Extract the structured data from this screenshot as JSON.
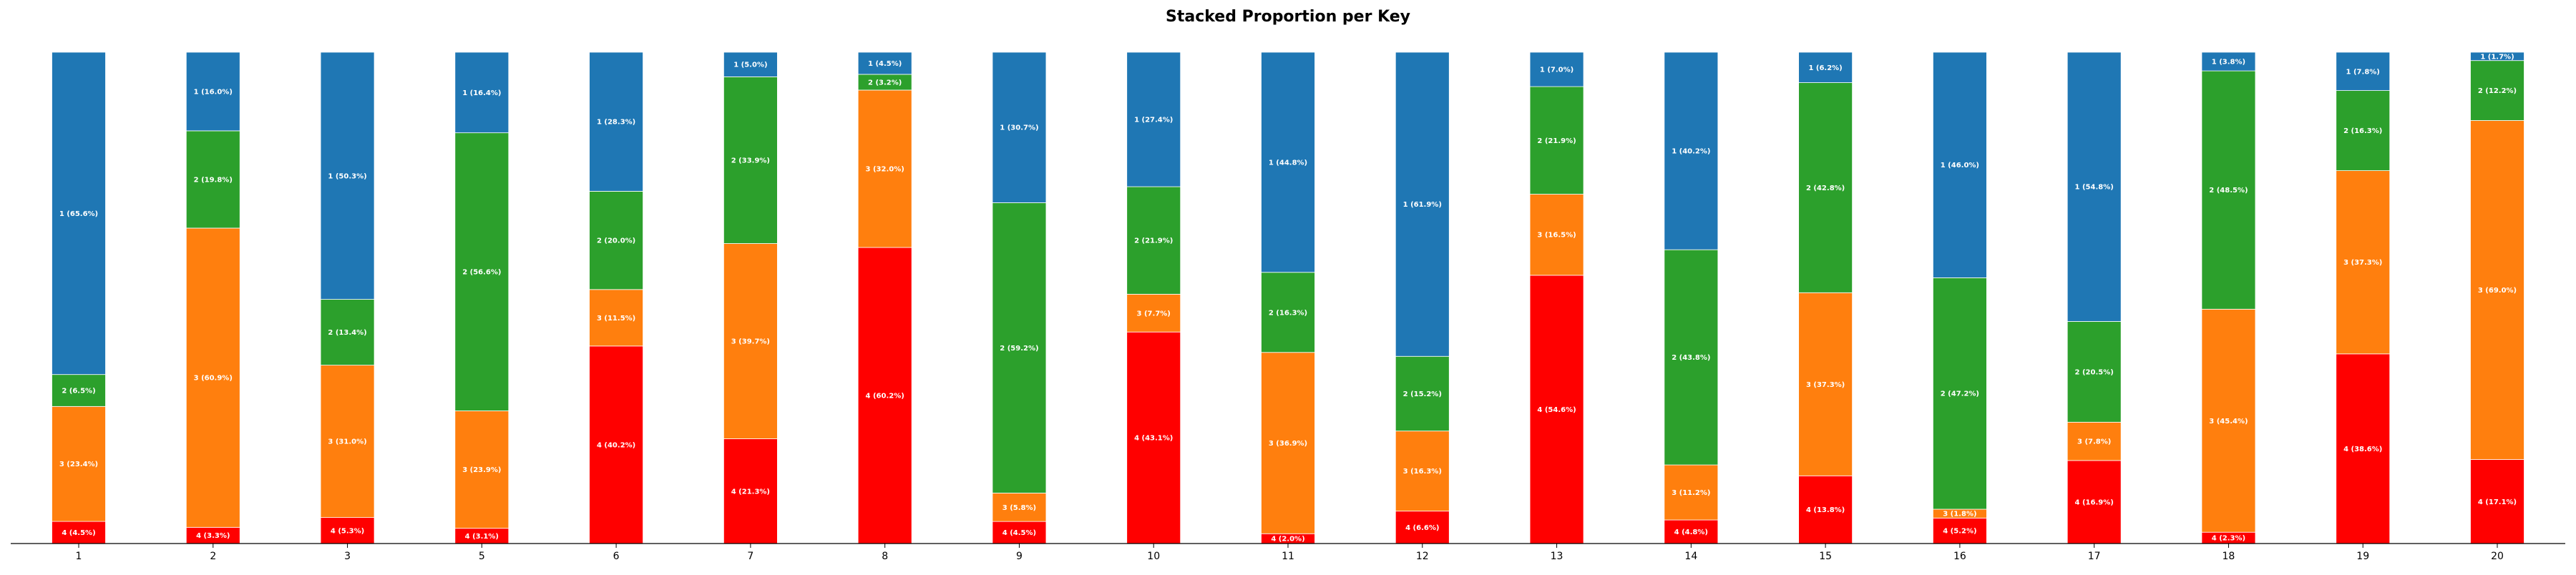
{
  "chart_data": {
    "type": "bar",
    "stacked": true,
    "normalized": true,
    "title": "Stacked Proportion per Key",
    "xlabel": "",
    "ylabel": "",
    "ylim": [
      0,
      1
    ],
    "grid": false,
    "legend": "none",
    "categories": [
      "1",
      "2",
      "3",
      "5",
      "6",
      "7",
      "8",
      "9",
      "10",
      "11",
      "12",
      "13",
      "14",
      "15",
      "16",
      "17",
      "18",
      "19",
      "20"
    ],
    "series": [
      {
        "name": "4",
        "color": "#ff0000",
        "values": [
          4.5,
          3.3,
          5.3,
          3.1,
          40.2,
          21.3,
          60.2,
          4.5,
          43.1,
          2.0,
          6.6,
          54.6,
          4.8,
          13.8,
          5.2,
          16.9,
          2.3,
          38.6,
          17.1
        ],
        "labels": [
          "4 (4.5%)",
          "4 (3.3%)",
          "4 (5.3%)",
          "4 (3.1%)",
          "4 (40.2%)",
          "4 (21.3%)",
          "4 (60.2%)",
          "4 (4.5%)",
          "4 (43.1%)",
          "4 (2.0%)",
          "4 (6.6%)",
          "4 (54.6%)",
          "4 (4.8%)",
          "4 (13.8%)",
          "4 (5.2%)",
          "4 (16.9%)",
          "4 (2.3%)",
          "4 (38.6%)",
          "4 (17.1%)"
        ]
      },
      {
        "name": "3",
        "color": "#ff7f0e",
        "values": [
          23.4,
          60.9,
          31.0,
          23.9,
          11.5,
          39.7,
          32.0,
          5.8,
          7.7,
          36.9,
          16.3,
          16.5,
          11.2,
          37.3,
          1.8,
          7.8,
          45.4,
          37.3,
          69.0
        ],
        "labels": [
          "3 (23.4%)",
          "3 (60.9%)",
          "3 (31.0%)",
          "3 (23.9%)",
          "3 (11.5%)",
          "3 (39.7%)",
          "3 (32.0%)",
          "3 (5.8%)",
          "3 (7.7%)",
          "3 (36.9%)",
          "3 (16.3%)",
          "3 (16.5%)",
          "3 (11.2%)",
          "3 (37.3%)",
          "3 (1.8%)",
          "3 (7.8%)",
          "3 (45.4%)",
          "3 (37.3%)",
          "3 (69.0%)"
        ]
      },
      {
        "name": "2",
        "color": "#2ca02c",
        "values": [
          6.5,
          19.8,
          13.4,
          56.6,
          20.0,
          33.9,
          3.2,
          59.2,
          21.9,
          16.3,
          15.2,
          21.9,
          43.8,
          42.8,
          47.2,
          20.5,
          48.5,
          16.3,
          12.2
        ],
        "labels": [
          "2 (6.5%)",
          "2 (19.8%)",
          "2 (13.4%)",
          "2 (56.6%)",
          "2 (20.0%)",
          "2 (33.9%)",
          "2 (3.2%)",
          "2 (59.2%)",
          "2 (21.9%)",
          "2 (16.3%)",
          "2 (15.2%)",
          "2 (21.9%)",
          "2 (43.8%)",
          "2 (42.8%)",
          "2 (47.2%)",
          "2 (20.5%)",
          "2 (48.5%)",
          "2 (16.3%)",
          "2 (12.2%)"
        ]
      },
      {
        "name": "1",
        "color": "#1f77b4",
        "values": [
          65.6,
          16.0,
          50.3,
          16.4,
          28.3,
          5.0,
          4.5,
          30.7,
          27.4,
          44.8,
          61.9,
          7.0,
          40.2,
          6.2,
          46.0,
          54.8,
          3.8,
          7.8,
          1.7
        ],
        "labels": [
          "1 (65.6%)",
          "1 (16.0%)",
          "1 (50.3%)",
          "1 (16.4%)",
          "1 (28.3%)",
          "1 (5.0%)",
          "1 (4.5%)",
          "1 (30.7%)",
          "1 (27.4%)",
          "1 (44.8%)",
          "1 (61.9%)",
          "1 (7.0%)",
          "1 (40.2%)",
          "1 (6.2%)",
          "1 (46.0%)",
          "1 (54.8%)",
          "1 (3.8%)",
          "1 (7.8%)",
          "1 (1.7%)"
        ]
      }
    ]
  }
}
